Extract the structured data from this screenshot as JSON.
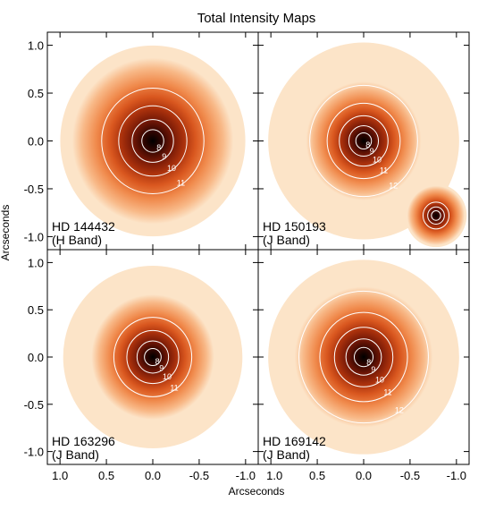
{
  "title": "Total Intensity Maps",
  "xlabel": "Arcseconds",
  "ylabel": "Arcseconds",
  "colors": {
    "colormap": [
      "#ffffff",
      "#fce4c8",
      "#f8b988",
      "#f08a4c",
      "#d9571f",
      "#a8300c",
      "#6e1606",
      "#2e0500",
      "#000000"
    ],
    "contour": "#ffffff",
    "axes": "#000000"
  },
  "chart_data": [
    {
      "type": "heatmap",
      "target": "HD 144432",
      "band": "(H Band)",
      "xlim": [
        1.0,
        -1.0
      ],
      "ylim": [
        -1.0,
        1.0
      ],
      "xticks": [
        "1.0",
        "0.5",
        "0.0",
        "-0.5",
        "-1.0"
      ],
      "yticks": [
        "1.0",
        "0.5",
        "0.0",
        "-0.5",
        "-1.0"
      ],
      "contour_labels": [
        "11",
        "10",
        "9",
        "8"
      ],
      "sources": [
        {
          "x": 0.0,
          "y": 0.0,
          "peak": 1.0,
          "width": 0.42
        }
      ],
      "halo_extent": 0.95
    },
    {
      "type": "heatmap",
      "target": "HD 150193",
      "band": "(J Band)",
      "xlim": [
        1.0,
        -1.0
      ],
      "ylim": [
        -1.0,
        1.0
      ],
      "xticks": [
        "1.0",
        "0.5",
        "0.0",
        "-0.5",
        "-1.0"
      ],
      "yticks": [
        "1.0",
        "0.5",
        "0.0",
        "-0.5",
        "-1.0"
      ],
      "contour_labels": [
        "12",
        "11",
        "10",
        "9",
        "8"
      ],
      "sources": [
        {
          "x": 0.0,
          "y": 0.0,
          "peak": 1.0,
          "width": 0.3
        },
        {
          "x": -0.78,
          "y": -0.78,
          "peak": 0.95,
          "width": 0.15
        }
      ],
      "halo_extent": 0.98
    },
    {
      "type": "heatmap",
      "target": "HD 163296",
      "band": "(J Band)",
      "xlim": [
        1.0,
        -1.0
      ],
      "ylim": [
        -1.0,
        1.0
      ],
      "xticks": [
        "1.0",
        "0.5",
        "0.0",
        "-0.5",
        "-1.0"
      ],
      "yticks": [
        "1.0",
        "0.5",
        "0.0",
        "-0.5",
        "-1.0"
      ],
      "contour_labels": [
        "11",
        "10",
        "9",
        "8"
      ],
      "sources": [
        {
          "x": 0.0,
          "y": 0.0,
          "peak": 1.0,
          "width": 0.32
        }
      ],
      "halo_extent": 0.92
    },
    {
      "type": "heatmap",
      "target": "HD 169142",
      "band": "(J Band)",
      "xlim": [
        1.0,
        -1.0
      ],
      "ylim": [
        -1.0,
        1.0
      ],
      "xticks": [
        "1.0",
        "0.5",
        "0.0",
        "-0.5",
        "-1.0"
      ],
      "yticks": [
        "1.0",
        "0.5",
        "0.0",
        "-0.5",
        "-1.0"
      ],
      "contour_labels": [
        "12",
        "11",
        "10",
        "9",
        "8"
      ],
      "sources": [
        {
          "x": 0.0,
          "y": 0.0,
          "peak": 1.0,
          "width": 0.36
        }
      ],
      "halo_extent": 0.98
    }
  ]
}
